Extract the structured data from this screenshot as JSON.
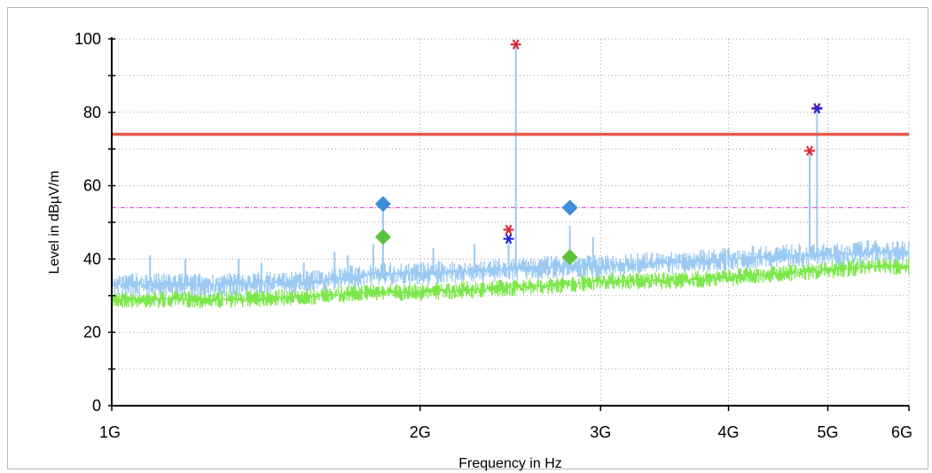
{
  "chart_data": {
    "type": "line",
    "title": "",
    "xlabel": "Frequency in Hz",
    "ylabel": "Level in dBµV/m",
    "x_scale": "log",
    "xlim_hz": [
      1000000000,
      6000000000
    ],
    "ylim": [
      0,
      100
    ],
    "grid": true,
    "x_ticks": [
      {
        "value": 1000000000,
        "label": "1G"
      },
      {
        "value": 2000000000,
        "label": "2G"
      },
      {
        "value": 3000000000,
        "label": "3G"
      },
      {
        "value": 4000000000,
        "label": "4G"
      },
      {
        "value": 5000000000,
        "label": "5G"
      },
      {
        "value": 6000000000,
        "label": "6G"
      }
    ],
    "y_ticks": [
      {
        "value": 0,
        "label": "0"
      },
      {
        "value": 20,
        "label": "20"
      },
      {
        "value": 40,
        "label": "40"
      },
      {
        "value": 60,
        "label": "60"
      },
      {
        "value": 80,
        "label": "80"
      },
      {
        "value": 100,
        "label": "100"
      }
    ],
    "limit_lines": [
      {
        "kind": "peak-limit",
        "value": 74,
        "color": "#e8574a"
      },
      {
        "kind": "average-limit",
        "value": 54,
        "color": "#e04ee0"
      }
    ],
    "series": [
      {
        "kind": "peak-trace",
        "color": "#9ccaf2",
        "baseline": [
          [
            1000000000,
            33
          ],
          [
            1300000000,
            33
          ],
          [
            1600000000,
            34
          ],
          [
            1800000000,
            36
          ],
          [
            2000000000,
            36
          ],
          [
            2400000000,
            37
          ],
          [
            2800000000,
            38
          ],
          [
            3000000000,
            38
          ],
          [
            3500000000,
            39
          ],
          [
            4000000000,
            40
          ],
          [
            4500000000,
            41
          ],
          [
            5000000000,
            41
          ],
          [
            5500000000,
            42
          ],
          [
            6000000000,
            42
          ]
        ],
        "spikes": [
          [
            1090000000,
            41
          ],
          [
            1180000000,
            40
          ],
          [
            1330000000,
            40
          ],
          [
            1400000000,
            39
          ],
          [
            1540000000,
            39
          ],
          [
            1650000000,
            42
          ],
          [
            1700000000,
            41
          ],
          [
            1800000000,
            44
          ],
          [
            1840000000,
            56
          ],
          [
            2060000000,
            43
          ],
          [
            2260000000,
            44
          ],
          [
            2440000000,
            46
          ],
          [
            2480000000,
            99
          ],
          [
            2800000000,
            49
          ],
          [
            2950000000,
            46
          ],
          [
            4800000000,
            69
          ],
          [
            4880000000,
            81
          ]
        ]
      },
      {
        "kind": "average-trace",
        "color": "#7de84b",
        "baseline": [
          [
            1000000000,
            29
          ],
          [
            1300000000,
            29
          ],
          [
            1600000000,
            30
          ],
          [
            1800000000,
            31
          ],
          [
            2000000000,
            31
          ],
          [
            2400000000,
            32
          ],
          [
            2800000000,
            33
          ],
          [
            3000000000,
            34
          ],
          [
            3500000000,
            34
          ],
          [
            4000000000,
            35
          ],
          [
            4500000000,
            36
          ],
          [
            5000000000,
            37
          ],
          [
            5500000000,
            38
          ],
          [
            6000000000,
            38
          ]
        ]
      },
      {
        "kind": "peak-markers",
        "marker": "asterisk",
        "color": "#e0202e",
        "points": [
          [
            2440000000,
            48
          ],
          [
            2480000000,
            98.5
          ],
          [
            4800000000,
            69.5
          ],
          [
            4880000000,
            81.2
          ]
        ]
      },
      {
        "kind": "average-asterisk-markers",
        "marker": "asterisk",
        "color": "#2020e0",
        "points": [
          [
            2440000000,
            45.5
          ],
          [
            4880000000,
            81
          ]
        ]
      },
      {
        "kind": "quasi-peak-markers",
        "marker": "diamond",
        "color": "#3d8fdc",
        "points": [
          [
            1840000000,
            55
          ],
          [
            2800000000,
            54
          ]
        ]
      },
      {
        "kind": "average-markers",
        "marker": "diamond",
        "color": "#5cc23a",
        "points": [
          [
            1840000000,
            46
          ],
          [
            2800000000,
            40.5
          ]
        ]
      }
    ]
  }
}
